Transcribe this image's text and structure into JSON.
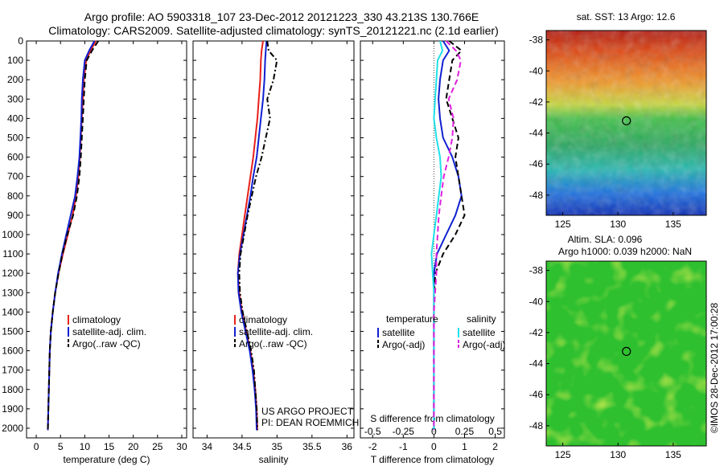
{
  "header": {
    "line1": "Argo profile: AO 5903318_107 23-Dec-2012 20121223_330 43.213S 130.766E",
    "line2": "Climatology: CARS2009. Satellite-adjusted climatology: synTS_20121221.nc (2.1d earlier)"
  },
  "side_stamp": "©IMOS 28-Dec-2012 17:00:28",
  "project_credit": {
    "line1": "US ARGO PROJECT",
    "line2": "PI: DEAN ROEMMICH"
  },
  "colors": {
    "climatology": "#e8201a",
    "satellite": "#1020d0",
    "argo": "#000000",
    "sal_satellite": "#20e0e8",
    "sal_argo": "#e020e0"
  },
  "chart_data": [
    {
      "id": "temperature",
      "type": "line",
      "xlabel": "temperature (deg C)",
      "ylabel": "",
      "xlim": [
        -2,
        31
      ],
      "ylim": [
        2050,
        0
      ],
      "xticks": [
        0,
        5,
        10,
        15,
        20,
        25,
        30
      ],
      "yticks": [
        0,
        100,
        200,
        300,
        400,
        500,
        600,
        700,
        800,
        900,
        1000,
        1100,
        1200,
        1300,
        1400,
        1500,
        1600,
        1700,
        1800,
        1900,
        2000
      ],
      "grid": false,
      "legend": {
        "position": "lower-middle",
        "entries": [
          "climatology",
          "satellite-adj. clim.",
          "Argo(..raw -QC)"
        ]
      },
      "series": [
        {
          "name": "climatology",
          "color": "#e8201a",
          "dash": "solid",
          "x": [
            12.3,
            11.2,
            10.3,
            9.8,
            9.6,
            9.4,
            9.2,
            9.0,
            8.7,
            8.2,
            7.5,
            6.5,
            5.5,
            4.6,
            3.9,
            3.4,
            3.0,
            2.8,
            2.7,
            2.6,
            2.5,
            2.4
          ],
          "y": [
            0,
            50,
            100,
            200,
            300,
            400,
            500,
            600,
            700,
            800,
            900,
            1000,
            1100,
            1200,
            1300,
            1400,
            1500,
            1600,
            1700,
            1800,
            1900,
            2010
          ]
        },
        {
          "name": "satellite-adj. clim.",
          "color": "#1020d0",
          "dash": "solid",
          "x": [
            12.0,
            10.9,
            10.0,
            9.6,
            9.4,
            9.3,
            9.1,
            8.9,
            8.5,
            8.0,
            7.1,
            6.2,
            5.3,
            4.5,
            3.9,
            3.4,
            3.0,
            2.8,
            2.7,
            2.6,
            2.5,
            2.4
          ],
          "y": [
            0,
            50,
            100,
            200,
            300,
            400,
            500,
            600,
            700,
            800,
            900,
            1000,
            1100,
            1200,
            1300,
            1400,
            1500,
            1600,
            1700,
            1800,
            1900,
            2010
          ]
        },
        {
          "name": "Argo(..raw -QC)",
          "color": "#000000",
          "dash": "dashed",
          "x": [
            12.8,
            11.5,
            10.4,
            10.0,
            9.8,
            9.6,
            9.4,
            9.2,
            8.9,
            8.4,
            7.6,
            6.4,
            5.4,
            4.6,
            3.9,
            3.4,
            3.0,
            2.8,
            2.7,
            2.6,
            2.5,
            2.4
          ],
          "y": [
            0,
            50,
            100,
            200,
            300,
            400,
            500,
            600,
            700,
            800,
            900,
            1000,
            1100,
            1200,
            1300,
            1400,
            1500,
            1600,
            1700,
            1800,
            1900,
            2010
          ]
        }
      ]
    },
    {
      "id": "salinity",
      "type": "line",
      "xlabel": "salinity",
      "ylabel": "",
      "xlim": [
        33.8,
        36.1
      ],
      "ylim": [
        2050,
        0
      ],
      "xticks": [
        34,
        34.5,
        35,
        35.5,
        36
      ],
      "xticklabels": [
        "34",
        "34.5",
        "35",
        "35.5",
        "36"
      ],
      "grid": false,
      "legend": {
        "position": "lower-middle",
        "entries": [
          "climatology",
          "satellite-adj. clim.",
          "Argo(..raw -QC)"
        ]
      },
      "series": [
        {
          "name": "climatology",
          "color": "#e8201a",
          "dash": "solid",
          "x": [
            34.8,
            34.78,
            34.77,
            34.76,
            34.74,
            34.72,
            34.69,
            34.66,
            34.62,
            34.58,
            34.54,
            34.5,
            34.46,
            34.44,
            34.46,
            34.5,
            34.56,
            34.62,
            34.66,
            34.69,
            34.71,
            34.72
          ],
          "y": [
            0,
            50,
            100,
            200,
            300,
            400,
            500,
            600,
            700,
            800,
            900,
            1000,
            1100,
            1200,
            1300,
            1400,
            1500,
            1600,
            1700,
            1800,
            1900,
            2010
          ]
        },
        {
          "name": "satellite-adj. clim.",
          "color": "#1020d0",
          "dash": "solid",
          "x": [
            34.85,
            34.84,
            34.83,
            34.82,
            34.8,
            34.77,
            34.74,
            34.71,
            34.66,
            34.62,
            34.57,
            34.52,
            34.47,
            34.44,
            34.45,
            34.49,
            34.55,
            34.61,
            34.65,
            34.68,
            34.7,
            34.71
          ],
          "y": [
            0,
            50,
            100,
            200,
            300,
            400,
            500,
            600,
            700,
            800,
            900,
            1000,
            1100,
            1200,
            1300,
            1400,
            1500,
            1600,
            1700,
            1800,
            1900,
            2010
          ]
        },
        {
          "name": "Argo(..raw -QC)",
          "color": "#000000",
          "dash": "dashdot",
          "x": [
            34.86,
            34.88,
            35.0,
            34.95,
            34.86,
            34.9,
            34.84,
            34.78,
            34.7,
            34.64,
            34.58,
            34.53,
            34.48,
            34.46,
            34.47,
            34.51,
            34.57,
            34.63,
            34.67,
            34.69,
            34.71,
            34.72
          ],
          "y": [
            0,
            50,
            100,
            200,
            300,
            400,
            500,
            600,
            700,
            800,
            900,
            1000,
            1100,
            1200,
            1300,
            1400,
            1500,
            1600,
            1700,
            1800,
            1900,
            2010
          ]
        }
      ]
    },
    {
      "id": "difference",
      "type": "line",
      "xlabel": "T difference from climatology",
      "xlabel2": "S difference from climatology",
      "ylabel": "",
      "xlim": [
        -2.4,
        2.3
      ],
      "ylim": [
        2050,
        0
      ],
      "xticks": [
        -2,
        -1,
        0,
        1,
        2
      ],
      "xticklabels": [
        "-2",
        "-1",
        "0",
        "1",
        "2"
      ],
      "xticks2": [
        -0.5,
        -0.25,
        0,
        0.25,
        0.5
      ],
      "xticklabels2": [
        "-0.5",
        "-0.25",
        "0",
        "0.25",
        "0.5"
      ],
      "zero_line": true,
      "grid": false,
      "legend": {
        "position": "lower-middle",
        "groups": [
          {
            "title": "temperature",
            "entries": [
              "satellite",
              "Argo(-adj)"
            ]
          },
          {
            "title": "salinity",
            "entries": [
              "satellite",
              "Argo(-adj)"
            ]
          }
        ]
      },
      "series": [
        {
          "name": "temperature satellite",
          "color": "#1020d0",
          "dash": "solid",
          "x": [
            0.3,
            0.5,
            0.3,
            0.2,
            0.15,
            0.2,
            0.3,
            0.6,
            0.8,
            0.9,
            0.7,
            0.4,
            0.1,
            0.0,
            0.0,
            0.0,
            0.0,
            0.0,
            0.0,
            0.0,
            0.0,
            0.0
          ],
          "y": [
            0,
            50,
            100,
            200,
            300,
            400,
            500,
            600,
            700,
            800,
            900,
            1000,
            1100,
            1200,
            1300,
            1400,
            1500,
            1600,
            1700,
            1800,
            1900,
            2010
          ]
        },
        {
          "name": "temperature Argo(-adj)",
          "color": "#000000",
          "dash": "dashed",
          "x": [
            0.5,
            0.9,
            0.6,
            0.5,
            0.4,
            0.6,
            0.8,
            0.7,
            0.8,
            0.9,
            1.0,
            0.7,
            0.3,
            0.05,
            0.0,
            0.0,
            0.0,
            0.0,
            0.0,
            0.0,
            0.0,
            0.0
          ],
          "y": [
            0,
            50,
            100,
            200,
            300,
            400,
            500,
            600,
            700,
            800,
            900,
            1000,
            1100,
            1200,
            1300,
            1400,
            1500,
            1600,
            1700,
            1800,
            1900,
            2010
          ]
        },
        {
          "name": "salinity satellite",
          "color": "#20e0e8",
          "dash": "solid",
          "x": [
            0.05,
            0.07,
            0.03,
            0.02,
            0.01,
            0.0,
            0.02,
            0.05,
            0.06,
            0.04,
            0.02,
            0.0,
            -0.02,
            -0.01,
            0.0,
            0.0,
            0.0,
            0.0,
            0.0,
            0.0,
            0.0,
            0.0
          ],
          "y": [
            0,
            50,
            100,
            200,
            300,
            400,
            500,
            600,
            700,
            800,
            900,
            1000,
            1100,
            1200,
            1300,
            1400,
            1500,
            1600,
            1700,
            1800,
            1900,
            2010
          ]
        },
        {
          "name": "salinity Argo(-adj)",
          "color": "#e020e0",
          "dash": "dashed",
          "x": [
            0.1,
            0.18,
            0.22,
            0.19,
            0.12,
            0.16,
            0.15,
            0.12,
            0.08,
            0.06,
            0.04,
            0.03,
            0.02,
            0.02,
            0.01,
            0.0,
            0.0,
            0.0,
            0.0,
            0.0,
            0.0,
            0.0
          ],
          "y": [
            0,
            50,
            100,
            200,
            300,
            400,
            500,
            600,
            700,
            800,
            900,
            1000,
            1100,
            1200,
            1300,
            1400,
            1500,
            1600,
            1700,
            1800,
            1900,
            2010
          ]
        }
      ]
    },
    {
      "id": "sst_map",
      "type": "heatmap",
      "title": "sat. SST: 13 Argo: 12.6",
      "xlim": [
        123.5,
        138
      ],
      "ylim": [
        -49.3,
        -37.4
      ],
      "xticks": [
        125,
        130,
        135
      ],
      "yticks": [
        -38,
        -40,
        -42,
        -44,
        -46,
        -48
      ],
      "colormap": "jet",
      "gradient": "warm in north, cold in south",
      "marker": {
        "lon": 130.766,
        "lat": -43.213,
        "shape": "circle"
      }
    },
    {
      "id": "sla_map",
      "type": "heatmap",
      "title": "Altim. SLA: 0.096",
      "subtitle": "Argo h1000: 0.039 h2000: NaN",
      "xlim": [
        123.5,
        138
      ],
      "ylim": [
        -49.3,
        -37.4
      ],
      "xticks": [
        125,
        130,
        135
      ],
      "yticks": [
        -38,
        -40,
        -42,
        -44,
        -46,
        -48
      ],
      "colormap": "green-yellow",
      "marker": {
        "lon": 130.766,
        "lat": -43.213,
        "shape": "circle"
      }
    }
  ]
}
